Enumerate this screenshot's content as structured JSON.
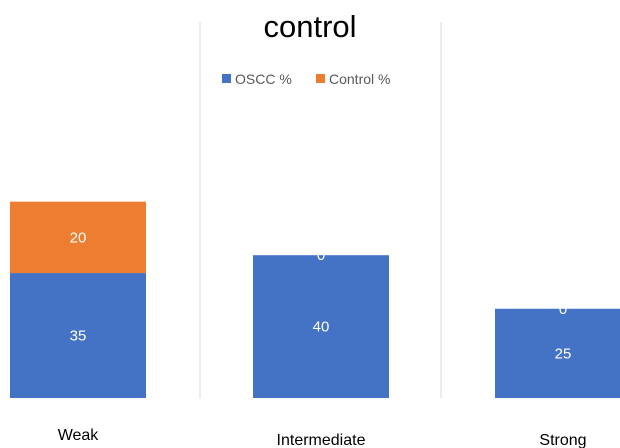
{
  "chart_data": {
    "type": "bar",
    "stacked": true,
    "title": "control",
    "categories": [
      "Weak",
      "Intermediate",
      "Strong"
    ],
    "series": [
      {
        "name": "OSCC %",
        "values": [
          35,
          40,
          25
        ],
        "color": "#4472c4"
      },
      {
        "name": "Control %",
        "values": [
          20,
          0,
          0
        ],
        "color": "#ed7d31"
      }
    ],
    "data_labels": {
      "OSCC %": [
        "35",
        "40",
        "25"
      ],
      "Control %": [
        "20",
        "0",
        "0"
      ]
    },
    "ylim": [
      0,
      63
    ],
    "grid": false,
    "legend": "top-left",
    "category_separators": true
  }
}
